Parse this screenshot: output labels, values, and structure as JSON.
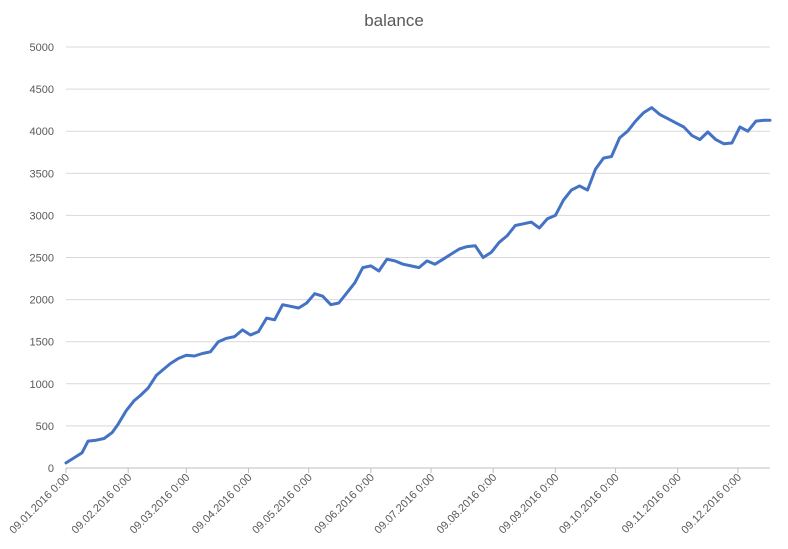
{
  "chart_data": {
    "type": "line",
    "title": "balance",
    "xlabel": "",
    "ylabel": "",
    "ylim": [
      0,
      5000
    ],
    "yticks": [
      "0",
      "500",
      "1000",
      "1500",
      "2000",
      "2500",
      "3000",
      "3500",
      "4000",
      "4500",
      "5000"
    ],
    "grid": "horizontal",
    "legend": "none",
    "line_color": "#4472c4",
    "xticks": [
      "09.01.2016 0:00",
      "09.02.2016 0:00",
      "09.03.2016 0:00",
      "09.04.2016 0:00",
      "09.05.2016 0:00",
      "09.06.2016 0:00",
      "09.07.2016 0:00",
      "09.08.2016 0:00",
      "09.09.2016 0:00",
      "09.10.2016 0:00",
      "09.11.2016 0:00",
      "09.12.2016 0:00"
    ],
    "series": [
      {
        "x": [
          "2016-01-09",
          "2016-01-13",
          "2016-01-17",
          "2016-01-20",
          "2016-01-24",
          "2016-01-28",
          "2016-02-01",
          "2016-02-04",
          "2016-02-08",
          "2016-02-12",
          "2016-02-15",
          "2016-02-19",
          "2016-02-23",
          "2016-02-27",
          "2016-03-01",
          "2016-03-05",
          "2016-03-09",
          "2016-03-13",
          "2016-03-17",
          "2016-03-21",
          "2016-03-25",
          "2016-03-29",
          "2016-04-02",
          "2016-04-06",
          "2016-04-10",
          "2016-04-14",
          "2016-04-18",
          "2016-04-22",
          "2016-04-26",
          "2016-04-30",
          "2016-05-04",
          "2016-05-08",
          "2016-05-12",
          "2016-05-16",
          "2016-05-20",
          "2016-05-24",
          "2016-05-28",
          "2016-06-01",
          "2016-06-05",
          "2016-06-09",
          "2016-06-13",
          "2016-06-17",
          "2016-06-21",
          "2016-06-25",
          "2016-06-29",
          "2016-07-03",
          "2016-07-07",
          "2016-07-11",
          "2016-07-15",
          "2016-07-19",
          "2016-07-23",
          "2016-07-27",
          "2016-07-31",
          "2016-08-04",
          "2016-08-08",
          "2016-08-12",
          "2016-08-16",
          "2016-08-20",
          "2016-08-24",
          "2016-08-28",
          "2016-09-01",
          "2016-09-05",
          "2016-09-09",
          "2016-09-13",
          "2016-09-17",
          "2016-09-21",
          "2016-09-25",
          "2016-09-29",
          "2016-10-03",
          "2016-10-07",
          "2016-10-11",
          "2016-10-15",
          "2016-10-19",
          "2016-10-23",
          "2016-10-27",
          "2016-10-31",
          "2016-11-04",
          "2016-11-08",
          "2016-11-12",
          "2016-11-16",
          "2016-11-20",
          "2016-11-24",
          "2016-11-28",
          "2016-12-02",
          "2016-12-06",
          "2016-12-10",
          "2016-12-14",
          "2016-12-18",
          "2016-12-22",
          "2016-12-25"
        ],
        "values": [
          60,
          120,
          180,
          320,
          330,
          350,
          420,
          520,
          680,
          800,
          860,
          950,
          1100,
          1180,
          1240,
          1300,
          1340,
          1330,
          1360,
          1380,
          1500,
          1540,
          1560,
          1640,
          1580,
          1620,
          1780,
          1760,
          1940,
          1920,
          1900,
          1960,
          2070,
          2040,
          1940,
          1960,
          2080,
          2200,
          2380,
          2400,
          2340,
          2480,
          2460,
          2420,
          2400,
          2380,
          2460,
          2420,
          2480,
          2540,
          2600,
          2630,
          2640,
          2500,
          2560,
          2680,
          2760,
          2880,
          2900,
          2920,
          2850,
          2960,
          3000,
          3180,
          3300,
          3350,
          3300,
          3550,
          3680,
          3700,
          3920,
          4000,
          4120,
          4220,
          4280,
          4200,
          4150,
          4100,
          4050,
          3950,
          3900,
          3990,
          3900,
          3850,
          3860,
          4050,
          4000,
          4120,
          4130,
          4130
        ]
      }
    ]
  }
}
